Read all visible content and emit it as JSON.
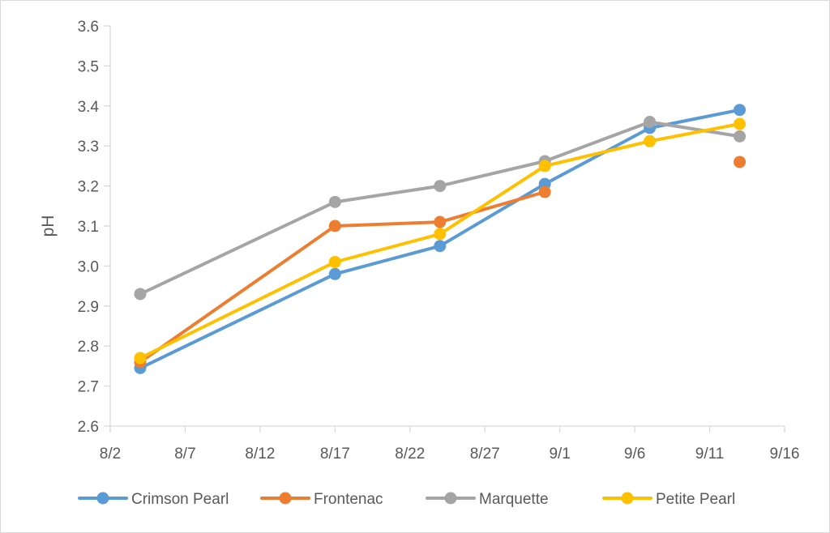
{
  "chart_data": {
    "type": "line",
    "title": "",
    "xlabel": "",
    "ylabel": "pH",
    "x_ticks": [
      "8/2",
      "8/7",
      "8/12",
      "8/17",
      "8/22",
      "8/27",
      "9/1",
      "9/6",
      "9/11",
      "9/16"
    ],
    "y_ticks": [
      "2.6",
      "2.7",
      "2.8",
      "2.9",
      "3.0",
      "3.1",
      "3.2",
      "3.3",
      "3.4",
      "3.5",
      "3.6"
    ],
    "xlim": [
      "8/2",
      "9/16"
    ],
    "ylim": [
      2.6,
      3.6
    ],
    "grid": false,
    "legend_position": "bottom",
    "series": [
      {
        "name": "Crimson Pearl",
        "color": "#5b9bd5",
        "points": [
          {
            "x": "8/4",
            "y": 2.745,
            "connected": true
          },
          {
            "x": "8/17",
            "y": 2.98,
            "connected": true
          },
          {
            "x": "8/24",
            "y": 3.05,
            "connected": true
          },
          {
            "x": "8/31",
            "y": 3.205,
            "connected": true
          },
          {
            "x": "9/7",
            "y": 3.345,
            "connected": true
          },
          {
            "x": "9/13",
            "y": 3.39,
            "connected": true
          }
        ]
      },
      {
        "name": "Frontenac",
        "color": "#ed7d31",
        "points": [
          {
            "x": "8/4",
            "y": 2.76,
            "connected": true
          },
          {
            "x": "8/17",
            "y": 3.1,
            "connected": true
          },
          {
            "x": "8/24",
            "y": 3.11,
            "connected": true
          },
          {
            "x": "8/31",
            "y": 3.185,
            "connected": true
          },
          {
            "x": "9/13",
            "y": 3.26,
            "connected": false
          }
        ]
      },
      {
        "name": "Marquette",
        "color": "#a5a5a5",
        "points": [
          {
            "x": "8/4",
            "y": 2.93,
            "connected": true
          },
          {
            "x": "8/17",
            "y": 3.16,
            "connected": true
          },
          {
            "x": "8/24",
            "y": 3.2,
            "connected": true
          },
          {
            "x": "8/31",
            "y": 3.262,
            "connected": true
          },
          {
            "x": "9/7",
            "y": 3.36,
            "connected": true
          },
          {
            "x": "9/13",
            "y": 3.324,
            "connected": true
          }
        ]
      },
      {
        "name": "Petite Pearl",
        "color": "#ffc000",
        "points": [
          {
            "x": "8/4",
            "y": 2.77,
            "connected": true
          },
          {
            "x": "8/17",
            "y": 3.01,
            "connected": true
          },
          {
            "x": "8/24",
            "y": 3.08,
            "connected": true
          },
          {
            "x": "8/31",
            "y": 3.25,
            "connected": true
          },
          {
            "x": "9/7",
            "y": 3.312,
            "connected": true
          },
          {
            "x": "9/13",
            "y": 3.355,
            "connected": true
          }
        ]
      }
    ]
  }
}
